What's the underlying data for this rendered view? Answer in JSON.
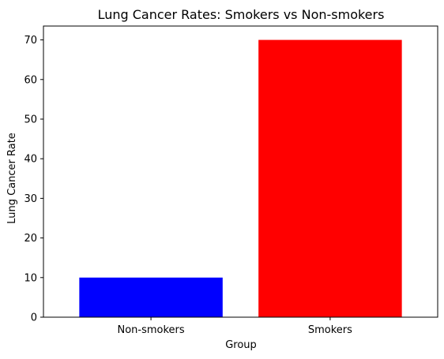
{
  "chart_data": {
    "type": "bar",
    "title": "Lung Cancer Rates: Smokers vs Non-smokers",
    "xlabel": "Group",
    "ylabel": "Lung Cancer Rate",
    "categories": [
      "Non-smokers",
      "Smokers"
    ],
    "values": [
      10,
      70
    ],
    "colors": [
      "#0000ff",
      "#ff0000"
    ],
    "ylim": [
      0,
      73.5
    ],
    "yticks": [
      0,
      10,
      20,
      30,
      40,
      50,
      60,
      70
    ],
    "grid": false,
    "legend": "none"
  }
}
